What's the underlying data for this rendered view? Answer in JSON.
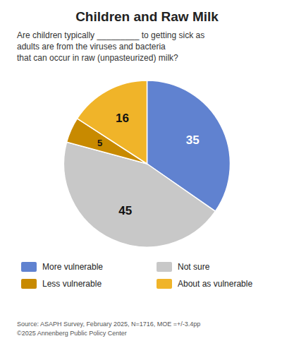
{
  "chart_data": {
    "type": "pie",
    "title": "Children and Raw Milk",
    "subtitle": "Are children typically _________ to getting sick as\nadults are from the viruses and bacteria\nthat can occur in raw (unpasteurized) milk?",
    "categories": [
      "More vulnerable",
      "Not sure",
      "Less vulnerable",
      "About as vulnerable"
    ],
    "values": [
      35,
      45,
      5,
      16
    ],
    "colors": [
      "#6082d0",
      "#c8c8c8",
      "#c88a00",
      "#f0b429"
    ],
    "data_labels": true,
    "legend": "bottom",
    "source": "Source: ASAPH Survey, February 2025, N=1716, MOE =+/-3.4pp\n©2025 Annenberg Public Policy Center"
  }
}
